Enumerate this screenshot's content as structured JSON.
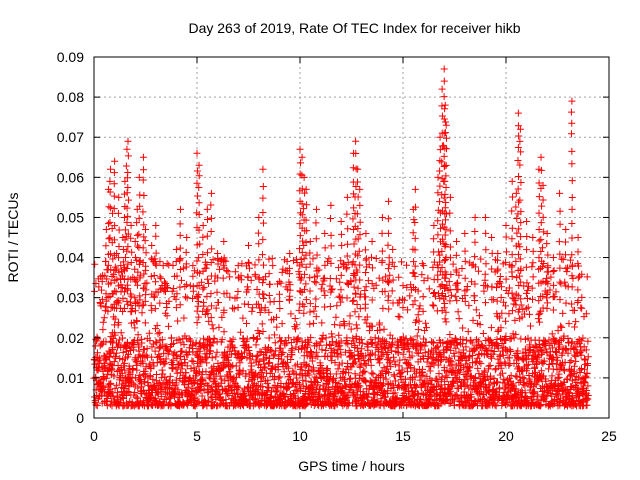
{
  "chart_data": {
    "type": "scatter",
    "title": "Day 263 of 2019, Rate Of TEC Index for receiver hikb",
    "xlabel": "GPS time / hours",
    "ylabel": "ROTI / TECUs",
    "xlim": [
      0,
      25
    ],
    "ylim": [
      0,
      0.09
    ],
    "xticks": [
      0,
      5,
      10,
      15,
      20,
      25
    ],
    "xtick_labels": [
      "0",
      "5",
      "10",
      "15",
      "20",
      "25"
    ],
    "yticks": [
      0,
      0.01,
      0.02,
      0.03,
      0.04,
      0.05,
      0.06,
      0.07,
      0.08,
      0.09
    ],
    "ytick_labels": [
      "0",
      "0.01",
      "0.02",
      "0.03",
      "0.04",
      "0.05",
      "0.06",
      "0.07",
      "0.08",
      "0.09"
    ],
    "grid": true,
    "marker": "+",
    "marker_color": "#ff0000",
    "series": [
      {
        "name": "ROTI",
        "x_range": [
          0,
          24
        ],
        "typical_range": [
          0.003,
          0.02
        ],
        "points": [
          [
            0.1,
            0.007
          ],
          [
            0.2,
            0.012
          ],
          [
            0.3,
            0.018
          ],
          [
            0.4,
            0.034
          ],
          [
            0.5,
            0.025
          ],
          [
            0.6,
            0.047
          ],
          [
            0.7,
            0.057
          ],
          [
            0.8,
            0.062
          ],
          [
            0.9,
            0.051
          ],
          [
            1.0,
            0.064
          ],
          [
            1.1,
            0.041
          ],
          [
            1.2,
            0.055
          ],
          [
            1.3,
            0.038
          ],
          [
            1.4,
            0.045
          ],
          [
            1.5,
            0.059
          ],
          [
            1.6,
            0.067
          ],
          [
            1.65,
            0.069
          ],
          [
            1.8,
            0.048
          ],
          [
            2.0,
            0.044
          ],
          [
            2.1,
            0.052
          ],
          [
            2.2,
            0.06
          ],
          [
            2.4,
            0.065
          ],
          [
            2.5,
            0.047
          ],
          [
            2.8,
            0.043
          ],
          [
            3.0,
            0.048
          ],
          [
            3.2,
            0.039
          ],
          [
            3.5,
            0.033
          ],
          [
            4.0,
            0.042
          ],
          [
            4.2,
            0.052
          ],
          [
            4.5,
            0.045
          ],
          [
            4.8,
            0.038
          ],
          [
            5.0,
            0.066
          ],
          [
            5.1,
            0.063
          ],
          [
            5.3,
            0.048
          ],
          [
            5.5,
            0.052
          ],
          [
            5.7,
            0.056
          ],
          [
            6.0,
            0.041
          ],
          [
            6.3,
            0.044
          ],
          [
            7.0,
            0.038
          ],
          [
            7.5,
            0.043
          ],
          [
            8.0,
            0.05
          ],
          [
            8.2,
            0.062
          ],
          [
            8.5,
            0.036
          ],
          [
            9.0,
            0.034
          ],
          [
            9.5,
            0.041
          ],
          [
            10.0,
            0.067
          ],
          [
            10.1,
            0.065
          ],
          [
            10.2,
            0.06
          ],
          [
            10.3,
            0.057
          ],
          [
            10.5,
            0.044
          ],
          [
            10.8,
            0.052
          ],
          [
            11.2,
            0.046
          ],
          [
            11.5,
            0.053
          ],
          [
            12.0,
            0.049
          ],
          [
            12.3,
            0.055
          ],
          [
            12.6,
            0.066
          ],
          [
            12.7,
            0.069
          ],
          [
            12.8,
            0.062
          ],
          [
            12.9,
            0.057
          ],
          [
            13.2,
            0.046
          ],
          [
            13.5,
            0.044
          ],
          [
            14.0,
            0.05
          ],
          [
            14.3,
            0.054
          ],
          [
            14.5,
            0.042
          ],
          [
            15.0,
            0.033
          ],
          [
            15.5,
            0.052
          ],
          [
            15.6,
            0.057
          ],
          [
            16.0,
            0.038
          ],
          [
            16.5,
            0.048
          ],
          [
            16.7,
            0.06
          ],
          [
            16.8,
            0.07
          ],
          [
            16.9,
            0.082
          ],
          [
            17.0,
            0.087
          ],
          [
            17.05,
            0.078
          ],
          [
            17.1,
            0.073
          ],
          [
            17.3,
            0.055
          ],
          [
            17.6,
            0.044
          ],
          [
            18.0,
            0.046
          ],
          [
            18.5,
            0.05
          ],
          [
            19.0,
            0.05
          ],
          [
            19.3,
            0.045
          ],
          [
            19.6,
            0.041
          ],
          [
            20.0,
            0.048
          ],
          [
            20.3,
            0.059
          ],
          [
            20.5,
            0.056
          ],
          [
            20.6,
            0.076
          ],
          [
            20.7,
            0.072
          ],
          [
            21.0,
            0.049
          ],
          [
            21.3,
            0.045
          ],
          [
            21.6,
            0.062
          ],
          [
            21.7,
            0.065
          ],
          [
            21.8,
            0.058
          ],
          [
            22.0,
            0.046
          ],
          [
            22.3,
            0.04
          ],
          [
            22.6,
            0.056
          ],
          [
            22.9,
            0.047
          ],
          [
            23.2,
            0.079
          ],
          [
            23.5,
            0.045
          ],
          [
            23.9,
            0.026
          ]
        ]
      }
    ]
  }
}
